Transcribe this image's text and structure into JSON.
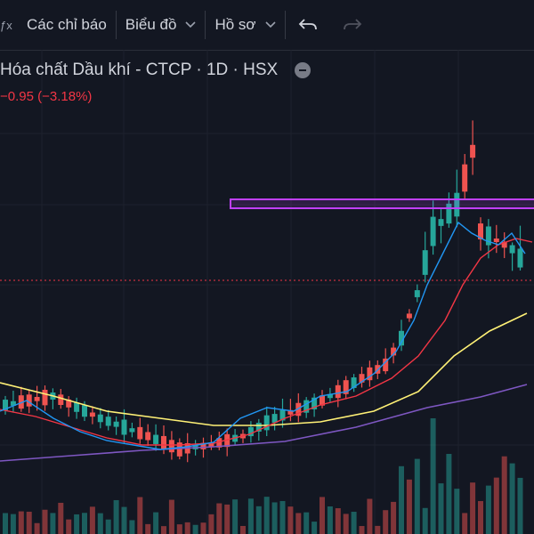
{
  "toolbar": {
    "indicators_label": "Các chỉ báo",
    "chart_label": "Biểu đồ",
    "profile_label": "Hồ sơ",
    "undo_icon": "undo-icon",
    "redo_icon": "redo-icon"
  },
  "symbol": {
    "name": "Hóa chất Dầu khí - CTCP · 1D · HSX",
    "change": "−0.95 (−3.18%)"
  },
  "colors": {
    "background": "#131722",
    "up": "#26a69a",
    "down": "#ef5350",
    "ma_fast": "#2196f3",
    "ma_mid": "#f23645",
    "ma_slow": "#fff176",
    "ma_long": "#7e57c2",
    "resistance_box": "#c040ff"
  },
  "chart_data": {
    "type": "candlestick",
    "series": [
      {
        "name": "price"
      },
      {
        "name": "volume"
      }
    ],
    "last_close_line": true,
    "resistance_zone": true
  }
}
